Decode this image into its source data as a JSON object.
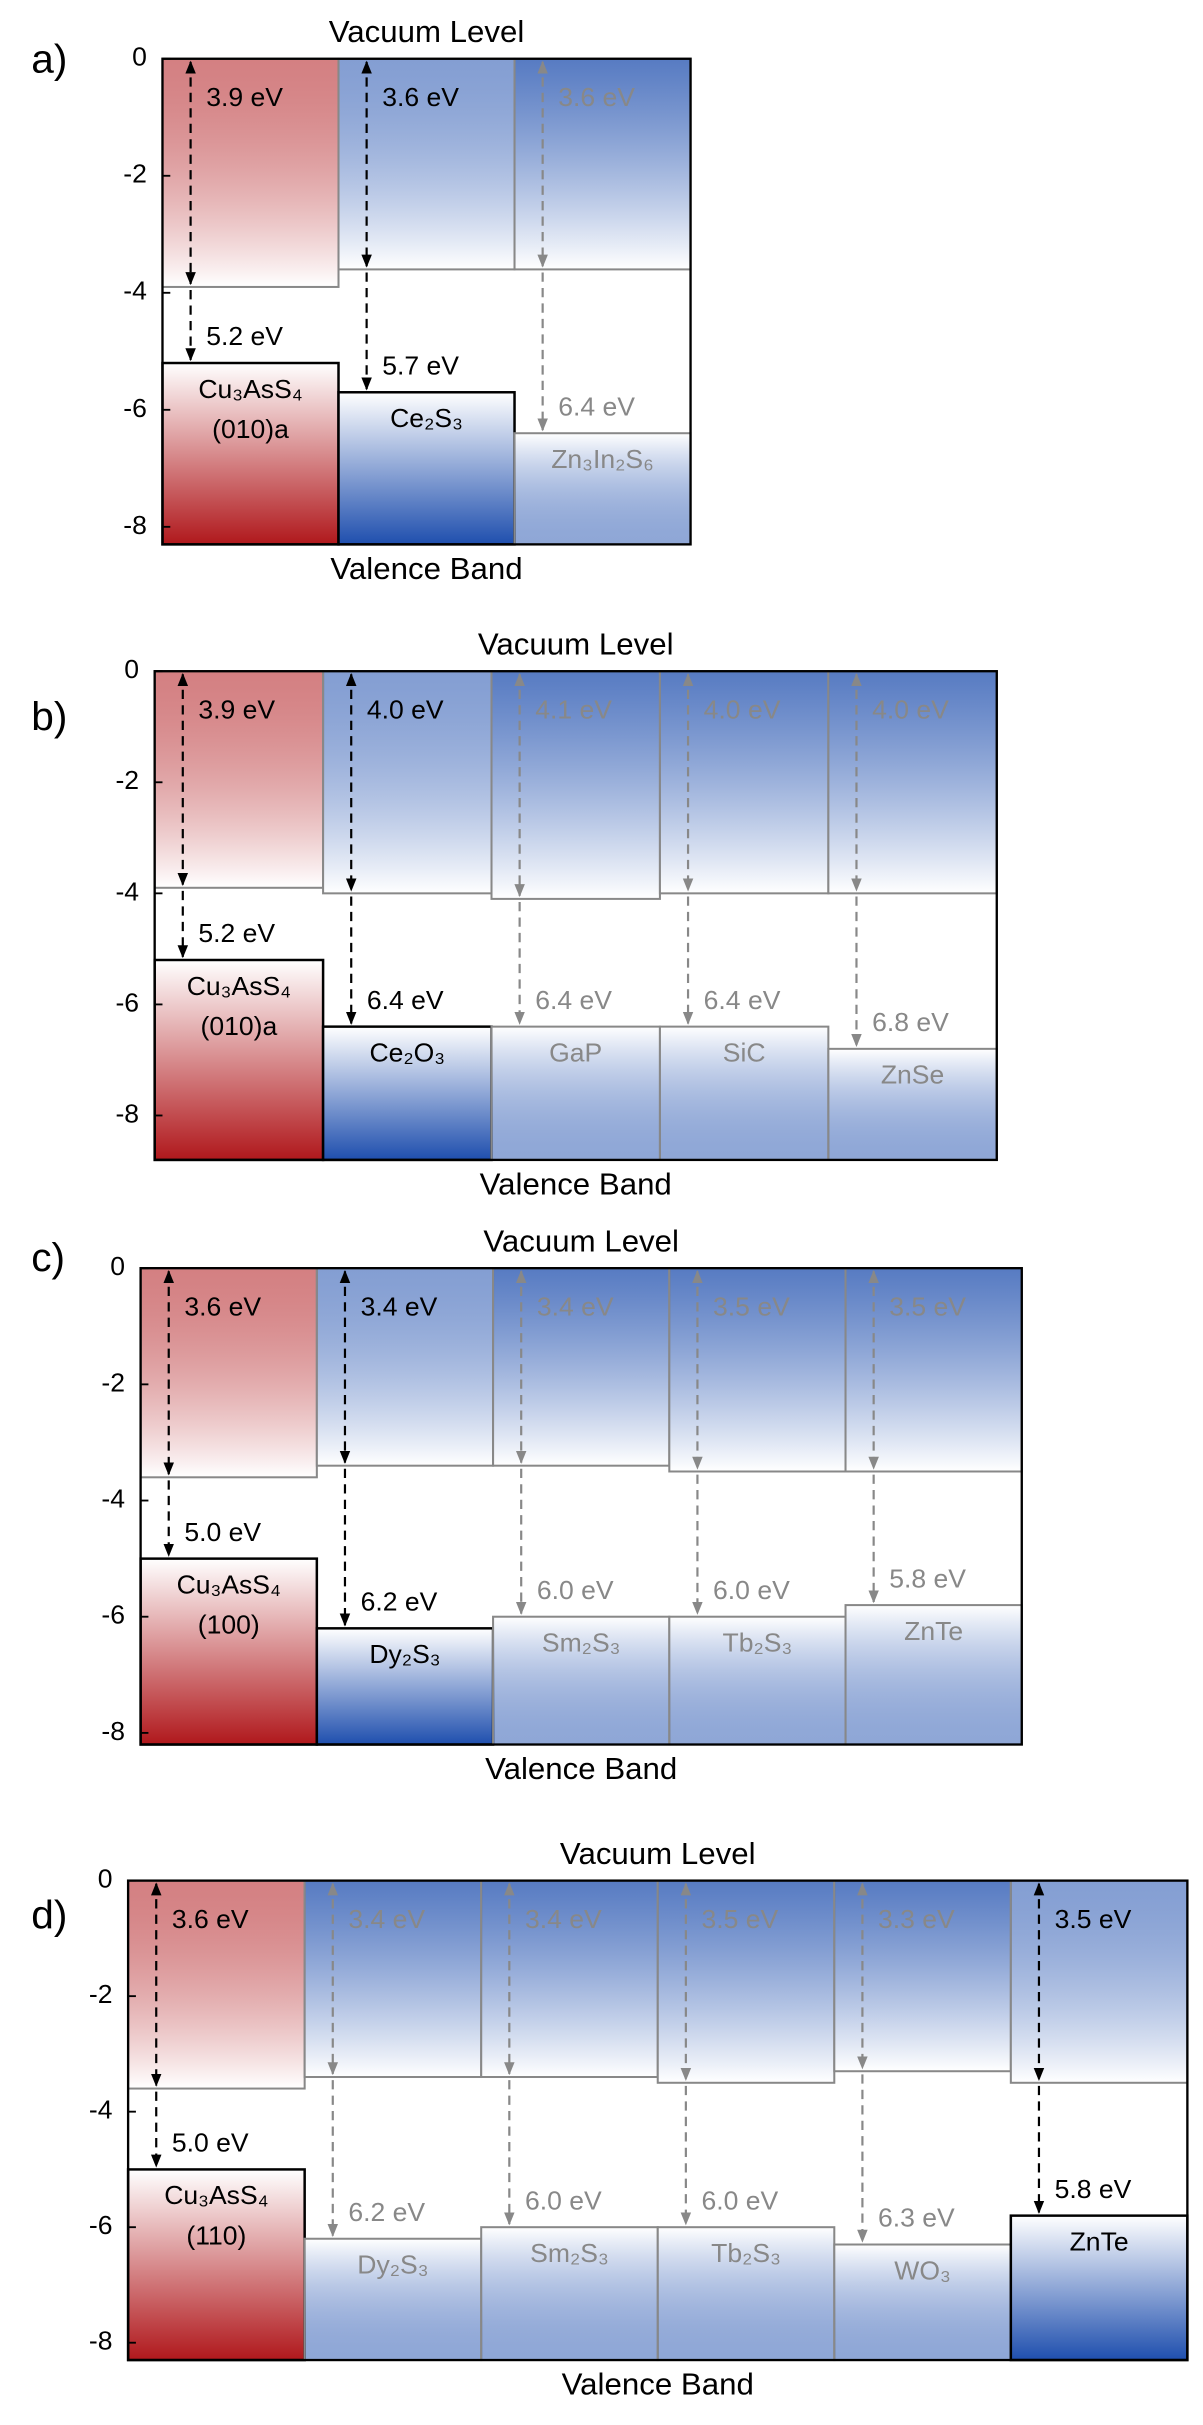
{
  "chart_data": [
    {
      "type": "band-alignment",
      "panel": "a)",
      "title": "Vacuum Level",
      "xlabel": "Valence Band",
      "ylim": [
        -8.3,
        0
      ],
      "yticks": [
        0,
        -2,
        -4,
        -6,
        -8
      ],
      "materials": [
        {
          "name": "Cu₃AsS₄",
          "facet": "(010)a",
          "electron_affinity": 3.9,
          "electron_affinity_label": "3.9 eV",
          "ionization_potential": 5.2,
          "ionization_potential_label": "5.2 eV",
          "color": "#b0181c",
          "highlight": true
        },
        {
          "name": "Ce₂S₃",
          "electron_affinity": 3.6,
          "electron_affinity_label": "3.6 eV",
          "ionization_potential": 5.7,
          "ionization_potential_label": "5.7 eV",
          "color": "#1f4fae",
          "highlight": true
        },
        {
          "name": "Zn₃In₂S₆",
          "electron_affinity": 3.6,
          "electron_affinity_label": "3.6 eV",
          "ionization_potential": 6.4,
          "ionization_potential_label": "6.4 eV",
          "color": "#1f4fae",
          "highlight": false
        }
      ]
    },
    {
      "type": "band-alignment",
      "panel": "b)",
      "title": "Vacuum Level",
      "xlabel": "Valence Band",
      "ylim": [
        -8.8,
        0
      ],
      "yticks": [
        0,
        -2,
        -4,
        -6,
        -8
      ],
      "materials": [
        {
          "name": "Cu₃AsS₄",
          "facet": "(010)a",
          "electron_affinity": 3.9,
          "electron_affinity_label": "3.9 eV",
          "ionization_potential": 5.2,
          "ionization_potential_label": "5.2 eV",
          "color": "#b0181c",
          "highlight": true
        },
        {
          "name": "Ce₂O₃",
          "electron_affinity": 4.0,
          "electron_affinity_label": "4.0 eV",
          "ionization_potential": 6.4,
          "ionization_potential_label": "6.4 eV",
          "color": "#1f4fae",
          "highlight": true
        },
        {
          "name": "GaP",
          "electron_affinity": 4.1,
          "electron_affinity_label": "4.1 eV",
          "ionization_potential": 6.4,
          "ionization_potential_label": "6.4 eV",
          "color": "#1f4fae",
          "highlight": false
        },
        {
          "name": "SiC",
          "electron_affinity": 4.0,
          "electron_affinity_label": "4.0 eV",
          "ionization_potential": 6.4,
          "ionization_potential_label": "6.4 eV",
          "color": "#1f4fae",
          "highlight": false
        },
        {
          "name": "ZnSe",
          "electron_affinity": 4.0,
          "electron_affinity_label": "4.0 eV",
          "ionization_potential": 6.8,
          "ionization_potential_label": "6.8 eV",
          "color": "#1f4fae",
          "highlight": false
        }
      ]
    },
    {
      "type": "band-alignment",
      "panel": "c)",
      "title": "Vacuum Level",
      "xlabel": "Valence Band",
      "ylim": [
        -8.2,
        0
      ],
      "yticks": [
        0,
        -2,
        -4,
        -6,
        -8
      ],
      "materials": [
        {
          "name": "Cu₃AsS₄",
          "facet": "(100)",
          "electron_affinity": 3.6,
          "electron_affinity_label": "3.6 eV",
          "ionization_potential": 5.0,
          "ionization_potential_label": "5.0 eV",
          "color": "#b0181c",
          "highlight": true
        },
        {
          "name": "Dy₂S₃",
          "electron_affinity": 3.4,
          "electron_affinity_label": "3.4 eV",
          "ionization_potential": 6.2,
          "ionization_potential_label": "6.2 eV",
          "color": "#1f4fae",
          "highlight": true
        },
        {
          "name": "Sm₂S₃",
          "electron_affinity": 3.4,
          "electron_affinity_label": "3.4 eV",
          "ionization_potential": 6.0,
          "ionization_potential_label": "6.0 eV",
          "color": "#1f4fae",
          "highlight": false
        },
        {
          "name": "Tb₂S₃",
          "electron_affinity": 3.5,
          "electron_affinity_label": "3.5 eV",
          "ionization_potential": 6.0,
          "ionization_potential_label": "6.0 eV",
          "color": "#1f4fae",
          "highlight": false
        },
        {
          "name": "ZnTe",
          "electron_affinity": 3.5,
          "electron_affinity_label": "3.5 eV",
          "ionization_potential": 5.8,
          "ionization_potential_label": "5.8 eV",
          "color": "#1f4fae",
          "highlight": false
        }
      ]
    },
    {
      "type": "band-alignment",
      "panel": "d)",
      "title": "Vacuum Level",
      "xlabel": "Valence Band",
      "ylim": [
        -8.3,
        0
      ],
      "yticks": [
        0,
        -2,
        -4,
        -6,
        -8
      ],
      "materials": [
        {
          "name": "Cu₃AsS₄",
          "facet": "(110)",
          "electron_affinity": 3.6,
          "electron_affinity_label": "3.6 eV",
          "ionization_potential": 5.0,
          "ionization_potential_label": "5.0 eV",
          "color": "#b0181c",
          "highlight": true
        },
        {
          "name": "Dy₂S₃",
          "electron_affinity": 3.4,
          "electron_affinity_label": "3.4 eV",
          "ionization_potential": 6.2,
          "ionization_potential_label": "6.2 eV",
          "color": "#1f4fae",
          "highlight": false
        },
        {
          "name": "Sm₂S₃",
          "electron_affinity": 3.4,
          "electron_affinity_label": "3.4 eV",
          "ionization_potential": 6.0,
          "ionization_potential_label": "6.0 eV",
          "color": "#1f4fae",
          "highlight": false
        },
        {
          "name": "Tb₂S₃",
          "electron_affinity": 3.5,
          "electron_affinity_label": "3.5 eV",
          "ionization_potential": 6.0,
          "ionization_potential_label": "6.0 eV",
          "color": "#1f4fae",
          "highlight": false
        },
        {
          "name": "WO₃",
          "electron_affinity": 3.3,
          "electron_affinity_label": "3.3 eV",
          "ionization_potential": 6.3,
          "ionization_potential_label": "6.3 eV",
          "color": "#1f4fae",
          "highlight": false
        },
        {
          "name": "ZnTe",
          "electron_affinity": 3.5,
          "electron_affinity_label": "3.5 eV",
          "ionization_potential": 5.8,
          "ionization_potential_label": "5.8 eV",
          "color": "#1f4fae",
          "highlight": true
        }
      ]
    }
  ]
}
